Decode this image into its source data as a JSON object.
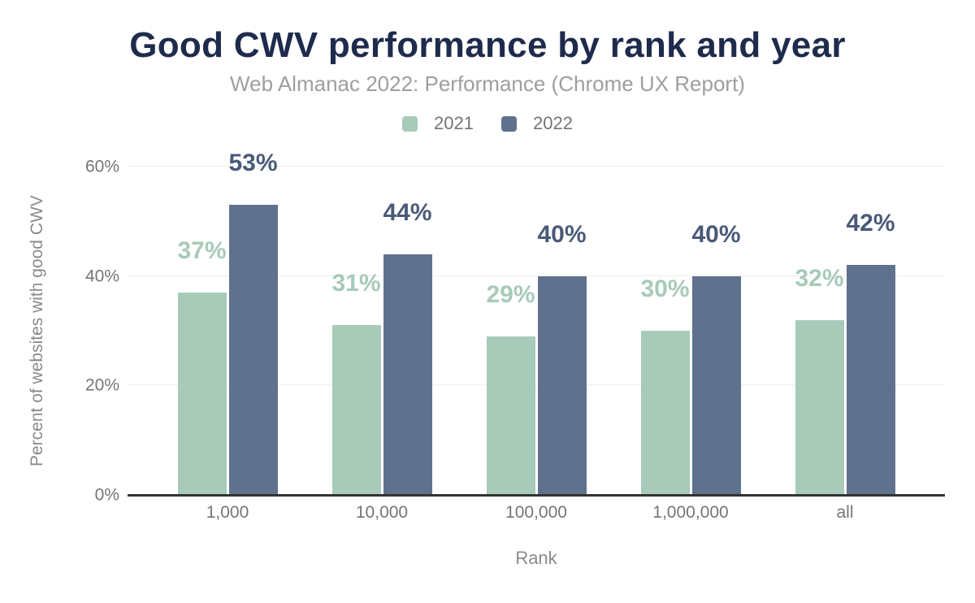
{
  "chart_data": {
    "type": "bar",
    "title": "Good CWV performance by rank and year",
    "subtitle": "Web Almanac 2022: Performance (Chrome UX Report)",
    "xlabel": "Rank",
    "ylabel": "Percent of websites with good CWV",
    "categories": [
      "1,000",
      "10,000",
      "100,000",
      "1,000,000",
      "all"
    ],
    "series": [
      {
        "name": "2021",
        "color": "#a7cab9",
        "label_color": "#a7cab9",
        "values": [
          37,
          31,
          29,
          30,
          32
        ]
      },
      {
        "name": "2022",
        "color": "#5f718d",
        "label_color": "#4a5a78",
        "values": [
          53,
          44,
          40,
          40,
          42
        ]
      }
    ],
    "data_label_suffix": "%",
    "ylim": [
      0,
      60
    ],
    "yticks": [
      0,
      20,
      40,
      60
    ],
    "ytick_labels": [
      "0%",
      "20%",
      "40%",
      "60%"
    ],
    "grid": true,
    "legend_position": "top"
  },
  "colors": {
    "title": "#1e2b4c",
    "subtitle": "#9e9e9e",
    "axis_text": "#757575",
    "axis_title": "#8a8a8a",
    "gridline": "#eeeeee",
    "baseline": "#333333",
    "background": "#ffffff"
  }
}
